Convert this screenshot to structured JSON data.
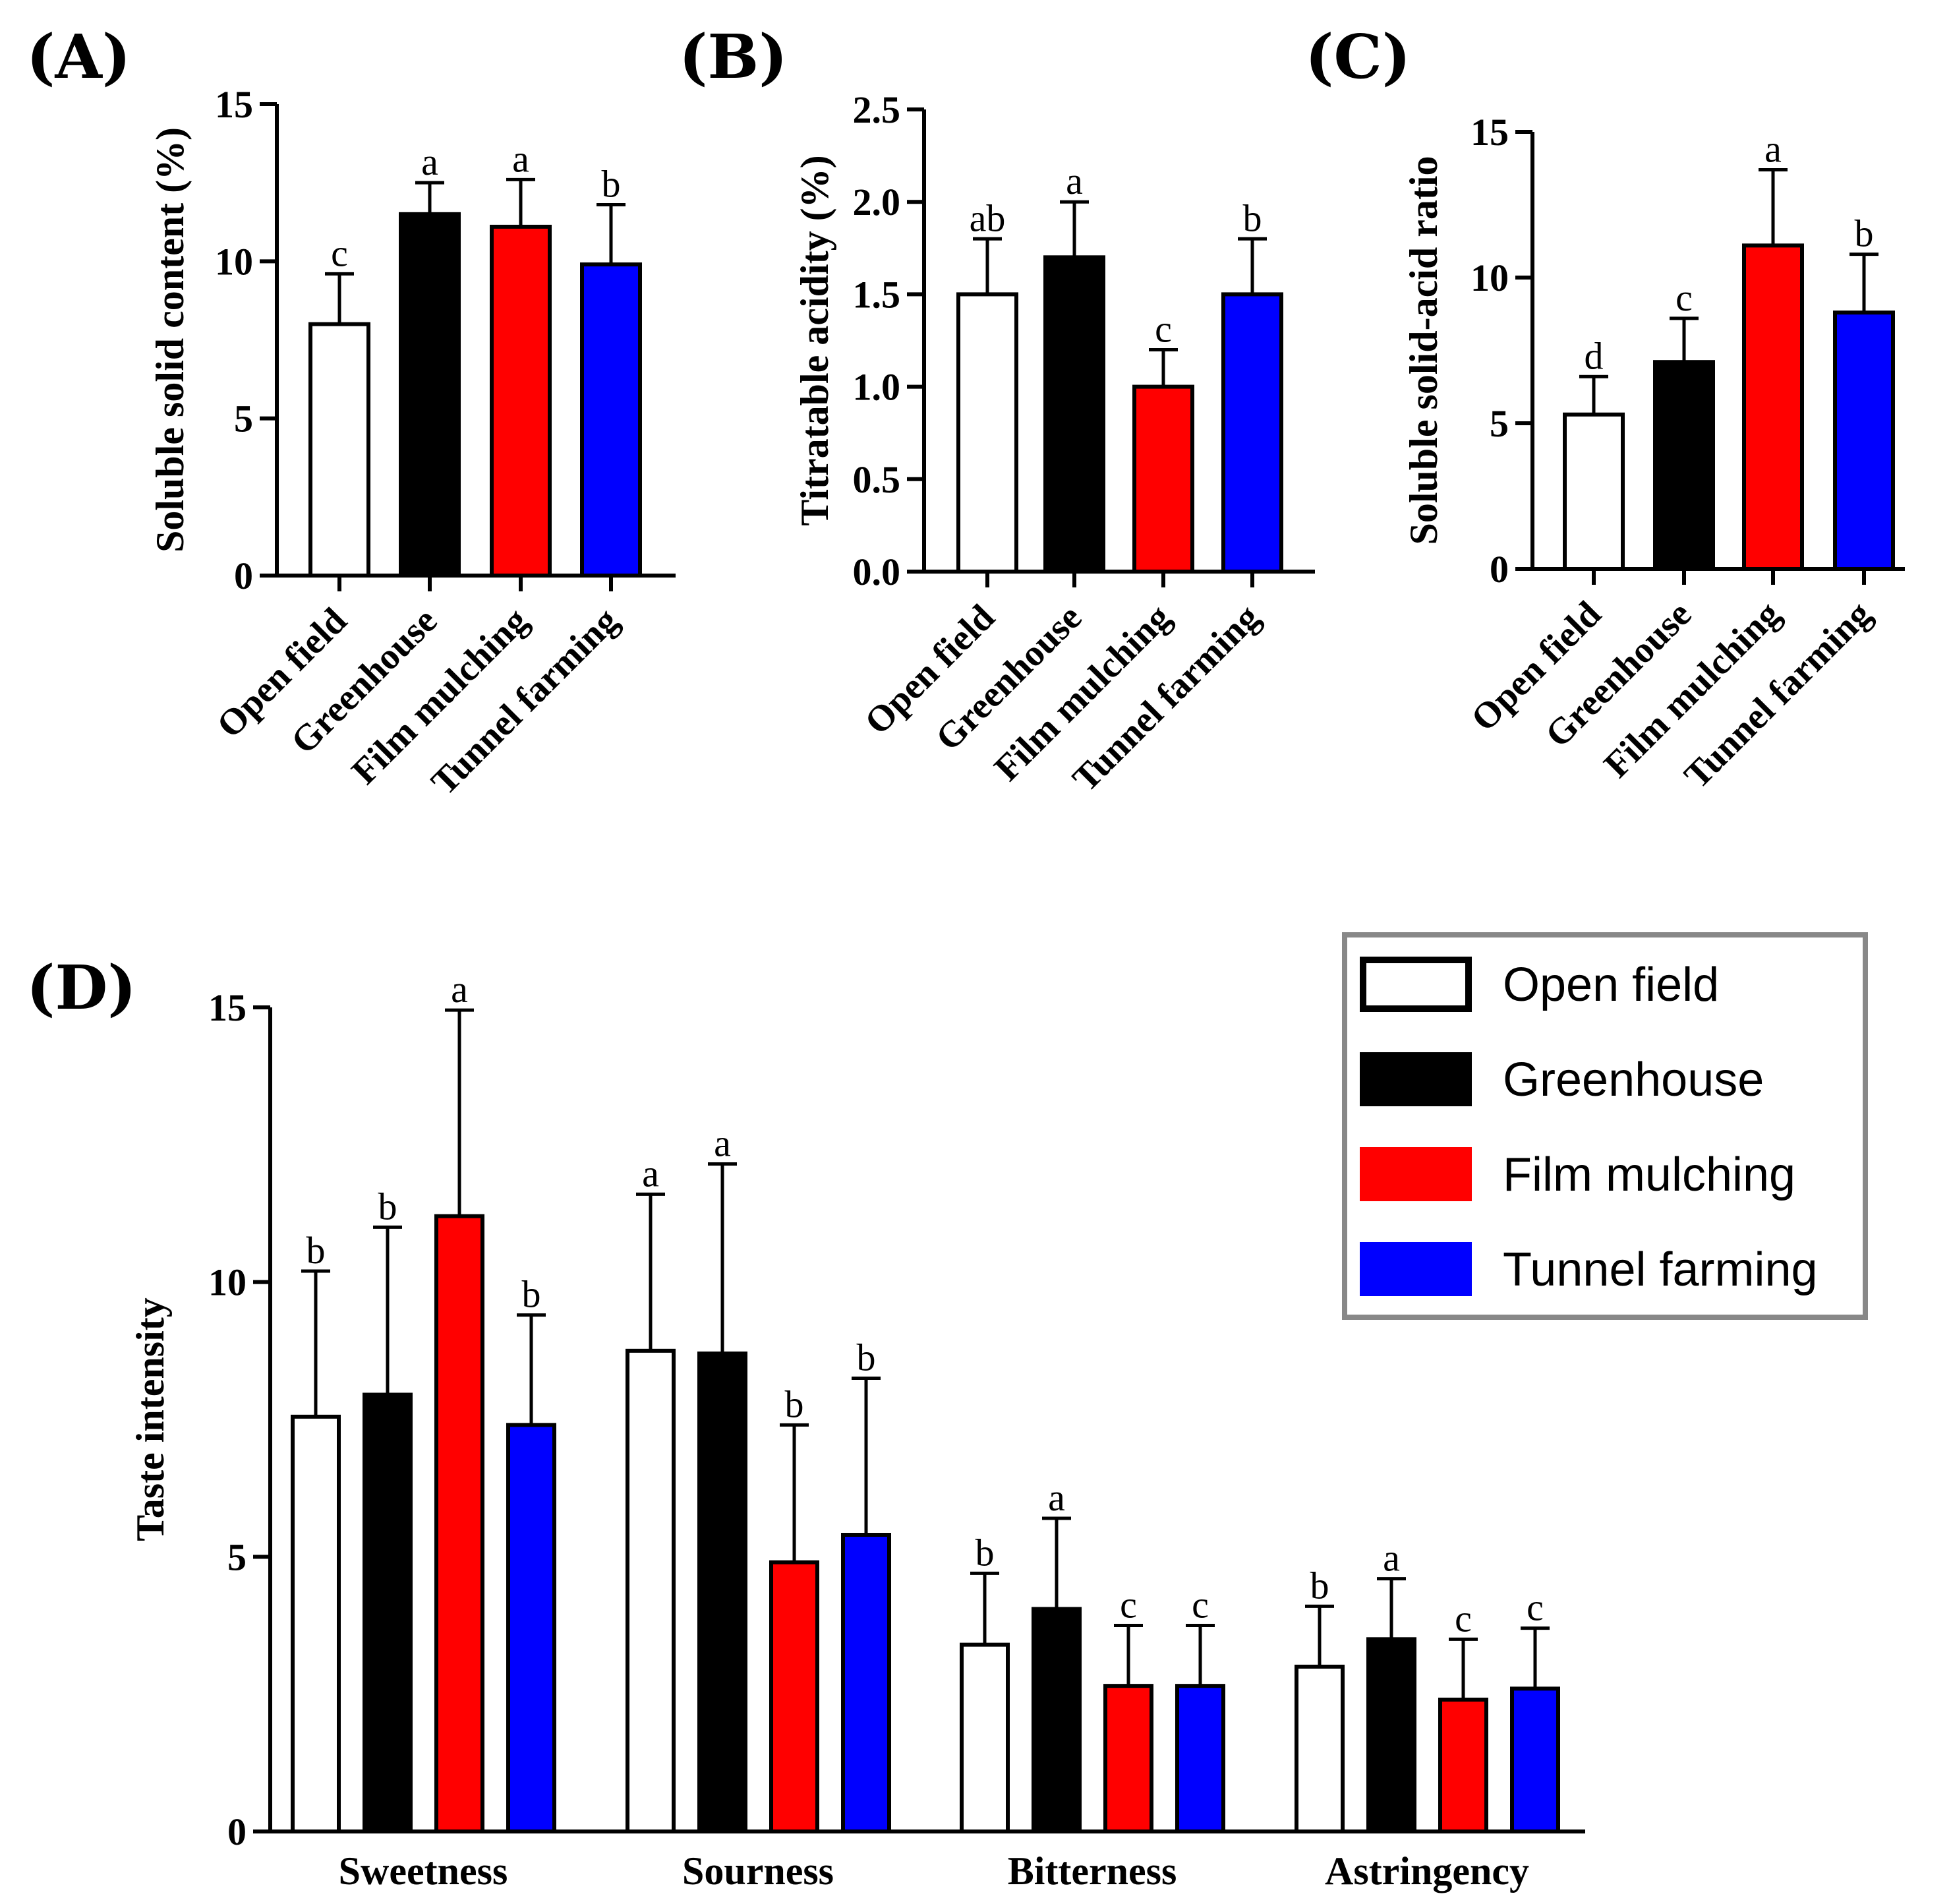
{
  "colors": {
    "Open field": "#ffffff",
    "Greenhouse": "#000000",
    "Film mulching": "#ff0000",
    "Tunnel farming": "#0000ff"
  },
  "legend": [
    "Open field",
    "Greenhouse",
    "Film mulching",
    "Tunnel farming"
  ],
  "chart_data": [
    {
      "panel": "(A)",
      "type": "bar",
      "ylabel": "Soluble solid content (%)",
      "ylim": [
        0,
        15
      ],
      "yticks": [
        "0",
        "5",
        "10",
        "15"
      ],
      "categories": [
        "Open field",
        "Greenhouse",
        "Film mulching",
        "Tunnel farming"
      ],
      "values": [
        8.0,
        11.5,
        11.1,
        9.9
      ],
      "errors": [
        1.6,
        1.0,
        1.5,
        1.9
      ],
      "letters": [
        "c",
        "a",
        "a",
        "b"
      ]
    },
    {
      "panel": "(B)",
      "type": "bar",
      "ylabel": "Titratable acidity (%)",
      "ylim": [
        0,
        2.5
      ],
      "yticks": [
        "0.0",
        "0.5",
        "1.0",
        "1.5",
        "2.0",
        "2.5"
      ],
      "categories": [
        "Open field",
        "Greenhouse",
        "Film mulching",
        "Tunnel farming"
      ],
      "values": [
        1.5,
        1.7,
        1.0,
        1.5
      ],
      "errors": [
        0.3,
        0.3,
        0.2,
        0.3
      ],
      "letters": [
        "ab",
        "a",
        "c",
        "b"
      ]
    },
    {
      "panel": "(C)",
      "type": "bar",
      "ylabel": "Soluble solid-acid ratio",
      "ylim": [
        0,
        15
      ],
      "yticks": [
        "0",
        "5",
        "10",
        "15"
      ],
      "categories": [
        "Open field",
        "Greenhouse",
        "Film mulching",
        "Tunnel farming"
      ],
      "values": [
        5.3,
        7.1,
        11.1,
        8.8
      ],
      "errors": [
        1.3,
        1.5,
        2.6,
        2.0
      ],
      "letters": [
        "d",
        "c",
        "a",
        "b"
      ]
    },
    {
      "panel": "(D)",
      "type": "bar",
      "ylabel": "Taste intensity",
      "ylim": [
        0,
        15
      ],
      "yticks": [
        "0",
        "5",
        "10",
        "15"
      ],
      "categories": [
        "Sweetness",
        "Sourness",
        "Bitterness",
        "Astringency"
      ],
      "series": [
        {
          "name": "Open field",
          "values": [
            7.55,
            8.75,
            3.4,
            3.0
          ],
          "errors": [
            2.65,
            2.85,
            1.3,
            1.1
          ],
          "letters": [
            "b",
            "a",
            "b",
            "b"
          ]
        },
        {
          "name": "Greenhouse",
          "values": [
            7.95,
            8.7,
            4.05,
            3.5
          ],
          "errors": [
            3.05,
            3.45,
            1.65,
            1.1
          ],
          "letters": [
            "b",
            "a",
            "a",
            "a"
          ]
        },
        {
          "name": "Film mulching",
          "values": [
            11.2,
            4.9,
            2.65,
            2.4
          ],
          "errors": [
            3.75,
            2.5,
            1.1,
            1.1
          ],
          "letters": [
            "a",
            "b",
            "c",
            "c"
          ]
        },
        {
          "name": "Tunnel farming",
          "values": [
            7.4,
            5.4,
            2.65,
            2.6
          ],
          "errors": [
            2.0,
            2.85,
            1.1,
            1.1
          ],
          "letters": [
            "b",
            "b",
            "c",
            "c"
          ]
        }
      ]
    }
  ]
}
